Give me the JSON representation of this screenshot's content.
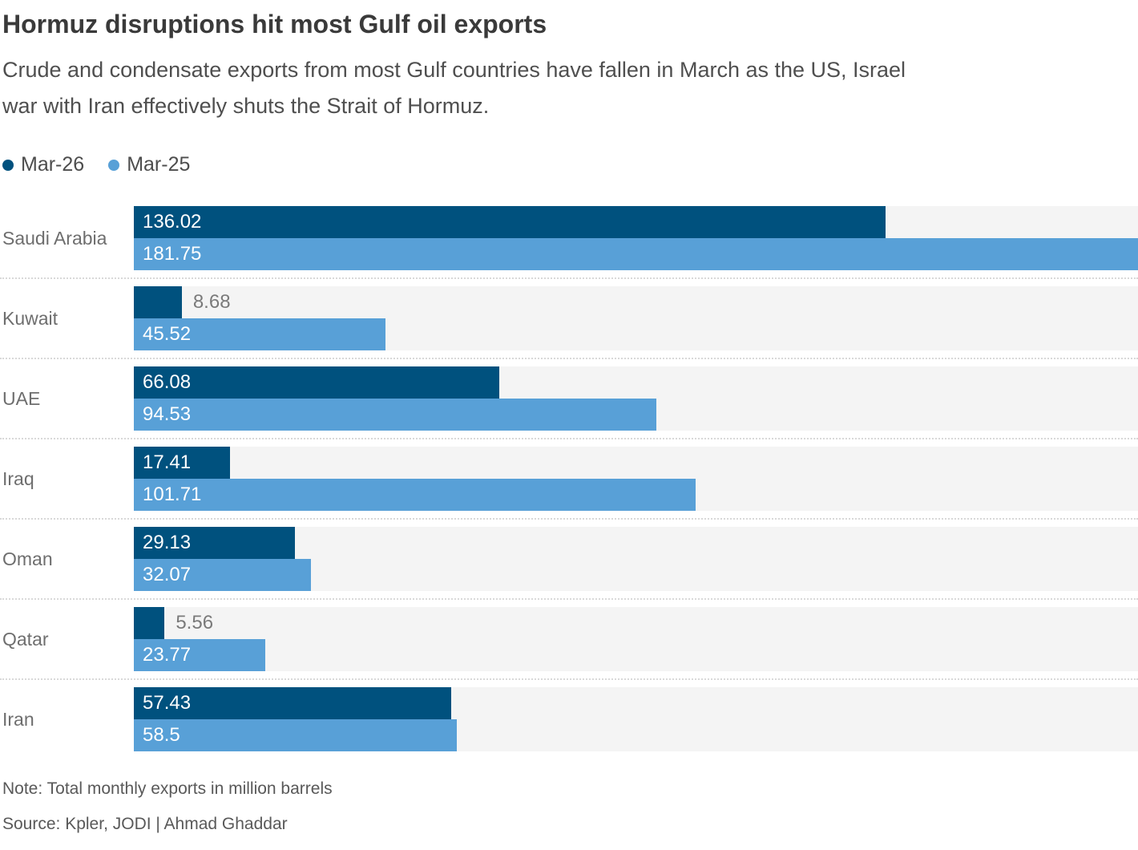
{
  "header": {
    "title": "Hormuz disruptions hit most Gulf oil exports",
    "subtitle_lines": [
      "Crude and condensate exports from most Gulf countries have fallen in March as the US, Israel",
      "war with Iran effectively shuts the Strait of Hormuz."
    ]
  },
  "colors": {
    "series_dark": "#00517e",
    "series_light": "#58a0d7",
    "bar_track": "#f4f4f4",
    "separator": "#d9d9d9",
    "inside_label": "#ffffff",
    "outside_label": "#7a7a7a"
  },
  "chart_data": {
    "type": "bar",
    "orientation": "horizontal",
    "title": "Hormuz disruptions hit most Gulf oil exports",
    "categories": [
      "Saudi Arabia",
      "Kuwait",
      "UAE",
      "Iraq",
      "Oman",
      "Qatar",
      "Iran"
    ],
    "series": [
      {
        "name": "Mar-26",
        "color": "#00517e",
        "values": [
          136.02,
          8.68,
          66.08,
          17.41,
          29.13,
          5.56,
          57.43
        ]
      },
      {
        "name": "Mar-25",
        "color": "#58a0d7",
        "values": [
          181.75,
          45.52,
          94.53,
          101.71,
          32.07,
          23.77,
          58.5
        ]
      }
    ],
    "xlim": [
      0,
      181.75
    ],
    "value_labels": true,
    "grid": false,
    "legend_position": "top-left",
    "units": "million barrels"
  },
  "footer": {
    "note": "Note: Total monthly exports in million barrels",
    "source": "Source: Kpler, JODI | Ahmad Ghaddar"
  }
}
